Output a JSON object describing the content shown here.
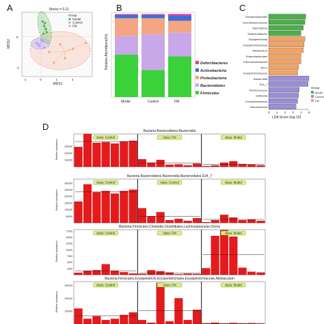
{
  "panel_labels": [
    "A",
    "B",
    "C",
    "D"
  ],
  "colors": {
    "model": "#4daf4a",
    "control": "#7fbf7f",
    "fm": "#f4a582",
    "bar_red": "#e41a1c",
    "class_box": "#d9ef8b",
    "lda_model": "#4daf4a",
    "lda_control": "#9a8fd6",
    "lda_fm": "#f4a261"
  },
  "chart_data": [
    {
      "type": "scatter",
      "panel": "A",
      "title": "Stress = 0.11",
      "xlabel": "MDS1",
      "ylabel": "MDS2",
      "legend_title": "Group",
      "legend_position": "top-right",
      "xticks": [
        "-1",
        "0",
        "1",
        "2"
      ],
      "yticks": [
        "0",
        "-2"
      ],
      "xlim": [
        -1.2,
        3.2
      ],
      "ylim": [
        -2.6,
        1.6
      ],
      "series": [
        {
          "name": "Model",
          "color": "#4daf4a",
          "x": [
            0.1,
            0.2,
            0.3,
            0.15,
            0.25,
            0.35
          ],
          "y": [
            1.0,
            0.7,
            0.5,
            0.2,
            0.9,
            0.3
          ]
        },
        {
          "name": "Control",
          "color": "#a6a6ff",
          "x": [
            -0.3,
            -0.1,
            0.1,
            -0.2,
            0.0,
            0.2
          ],
          "y": [
            -0.4,
            -0.6,
            -0.3,
            -0.5,
            -0.2,
            -0.7
          ]
        },
        {
          "name": "FM",
          "color": "#f4a582",
          "x": [
            0.5,
            1.2,
            2.0,
            2.8,
            1.5,
            0.8
          ],
          "y": [
            -1.0,
            -0.5,
            -0.8,
            -0.4,
            -1.4,
            -1.7
          ]
        }
      ]
    },
    {
      "type": "bar",
      "panel": "B",
      "stacked": true,
      "ylabel": "Relative Abundance(%)",
      "categories": [
        "Model",
        "Control",
        "FM"
      ],
      "series": [
        {
          "name": "Firmicutes",
          "color": "#3bd13b",
          "values": [
            50,
            32,
            48
          ]
        },
        {
          "name": "Bacteroidetes",
          "color": "#c8a8e8",
          "values": [
            22,
            42,
            28
          ]
        },
        {
          "name": "Proteobacteria",
          "color": "#f4a582",
          "values": [
            21,
            19,
            14
          ]
        },
        {
          "name": "Actinobacteria",
          "color": "#3d6fd9",
          "values": [
            4,
            4,
            6
          ]
        },
        {
          "name": "Deferribacteres",
          "color": "#e8399b",
          "values": [
            1,
            1,
            2
          ]
        }
      ]
    },
    {
      "type": "bar",
      "panel": "C",
      "orientation": "horizontal",
      "xlabel": "LDA Score (log 10)",
      "xlim": [
        0,
        5
      ],
      "xticks": [
        "0",
        "1",
        "2",
        "3",
        "4",
        "5"
      ],
      "legend_title": "Group",
      "legend": [
        {
          "name": "Model",
          "color": "#4daf4a"
        },
        {
          "name": "Control",
          "color": "#9a8fd6"
        },
        {
          "name": "FM",
          "color": "#f4a261"
        }
      ],
      "categories": [
        "Desulfobacterales",
        "Desulfobacteraceae",
        "Saprospirae",
        "Sedimentibacter",
        "Erysipelotrichia",
        "Erysipelotrichaceae",
        "Allobaculum",
        "Enterobacteriales",
        "Enterobacteriaceae",
        "AF12",
        "Erysipelotrichaceae",
        "Bacteroidia",
        "S24_7",
        "Ruminococcus",
        "Sutterella",
        "Coriobacteriaceae",
        "Rikenellaceae"
      ],
      "groups": [
        "Model",
        "Model",
        "Model",
        "Model",
        "FM",
        "FM",
        "FM",
        "FM",
        "FM",
        "FM",
        "FM",
        "Control",
        "Control",
        "Control",
        "Control",
        "Control",
        "Control"
      ],
      "values": [
        4.6,
        4.5,
        4.3,
        4.0,
        4.5,
        4.4,
        4.3,
        4.0,
        4.0,
        3.7,
        3.6,
        5.0,
        4.9,
        3.8,
        3.7,
        3.6,
        3.4
      ]
    },
    {
      "type": "bar",
      "panel": "D",
      "title": "Bacteria.Bacteroidetes.Bacteroidia",
      "ylabel": "Relative abundance",
      "yticks": [
        "100000",
        "200000",
        "300000"
      ],
      "ylim": [
        0,
        480000
      ],
      "classes": [
        "class: Control",
        "class: FM",
        "class: Model"
      ],
      "values": [
        [
          290000,
          480000,
          350000,
          360000,
          340000,
          370000,
          380000
        ],
        [
          110000,
          60000,
          100000,
          30000,
          35000,
          20000,
          45000
        ],
        [
          10000,
          20000,
          60000,
          80000,
          40000,
          30000,
          20000
        ]
      ],
      "means": [
        370000,
        57000,
        37000
      ]
    },
    {
      "type": "bar",
      "panel": "D",
      "title": "Bacteria.Bacteroidetes.Bacteroidia.Bacteroidales.S24_7",
      "ylabel": "Relative abundance",
      "yticks": [
        "50000",
        "100000",
        "150000",
        "200000",
        "250000",
        "300000"
      ],
      "ylim": [
        0,
        330000
      ],
      "classes": [
        "class: Control",
        "class: Control",
        "class: Model"
      ],
      "values": [
        [
          160000,
          290000,
          230000,
          240000,
          220000,
          240000,
          250000
        ],
        [
          110000,
          50000,
          80000,
          20000,
          30000,
          15000,
          35000
        ],
        [
          5000,
          20000,
          60000,
          40000,
          20000,
          25000,
          15000
        ]
      ],
      "means": [
        233000,
        49000,
        26000
      ]
    },
    {
      "type": "bar",
      "panel": "D",
      "title": "Bacteria.Firmicutes.Clostridia.Clostridiales.Lachnospiraceae.Dorea",
      "ylabel": "Relative abundance",
      "yticks": [
        "2500",
        "5000",
        "7500",
        "10000",
        "12500",
        "15000",
        "17500"
      ],
      "ylim": [
        0,
        18000
      ],
      "classes": [
        "class: Control",
        "class: FM",
        "class: Model"
      ],
      "values": [
        [
          800,
          1500,
          1800,
          4200,
          1600,
          1000,
          500
        ],
        [
          300,
          1800,
          1400,
          900,
          200,
          400,
          300
        ],
        [
          2600,
          15500,
          17800,
          15200,
          2800,
          1200,
          900
        ]
      ],
      "means": [
        1600,
        750,
        8000
      ]
    },
    {
      "type": "bar",
      "panel": "D",
      "title": "Bacteria.Firmicutes.Erysipelotrichi.Erysipelotrichales.Erysipelotrichaceae.Allobaculum",
      "ylabel": "Relative abundance",
      "yticks": [
        "100000",
        "200000",
        "300000"
      ],
      "ylim": [
        0,
        330000
      ],
      "classes": [
        "class: Control",
        "class: FM",
        "class: Model"
      ],
      "values": [
        [
          120000,
          40000,
          60000,
          30000,
          40000,
          70000,
          90000
        ],
        [
          30000,
          10000,
          320000,
          20000,
          200000,
          30000,
          110000
        ],
        [
          5000,
          10000,
          3000,
          8000,
          4000,
          6000,
          2000
        ]
      ],
      "means": [
        64000,
        103000,
        5000
      ]
    }
  ]
}
